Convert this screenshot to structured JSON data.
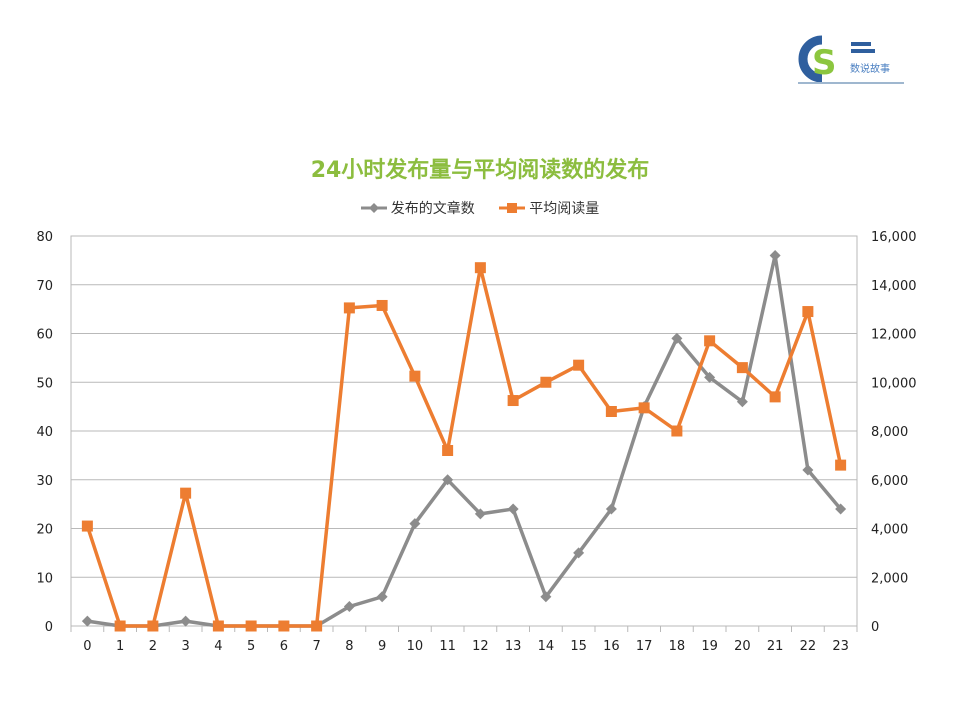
{
  "logo": {
    "caption": "数说故事"
  },
  "chart_data": {
    "type": "line",
    "title": "24小时发布量与平均阅读数的发布",
    "categories": [
      "0",
      "1",
      "2",
      "3",
      "4",
      "5",
      "6",
      "7",
      "8",
      "9",
      "10",
      "11",
      "12",
      "13",
      "14",
      "15",
      "16",
      "17",
      "18",
      "19",
      "20",
      "21",
      "22",
      "23"
    ],
    "series": [
      {
        "name": "发布的文章数",
        "axis": "left",
        "color": "#8c8c8c",
        "marker": "diamond",
        "values": [
          1,
          0,
          0,
          1,
          0,
          0,
          0,
          0,
          4,
          6,
          21,
          30,
          23,
          24,
          6,
          15,
          24,
          45,
          59,
          51,
          46,
          76,
          32,
          24
        ]
      },
      {
        "name": "平均阅读量",
        "axis": "right",
        "color": "#ed7d31",
        "marker": "square",
        "values": [
          4100,
          0,
          0,
          5450,
          0,
          0,
          0,
          0,
          13050,
          13150,
          10250,
          7200,
          14700,
          9250,
          10000,
          10700,
          8800,
          8950,
          8000,
          11700,
          10600,
          9400,
          12900,
          6600
        ]
      }
    ],
    "y_left": {
      "ylim": [
        0,
        80
      ],
      "ticks": [
        "0",
        "10",
        "20",
        "30",
        "40",
        "50",
        "60",
        "70",
        "80"
      ]
    },
    "y_right": {
      "ylim": [
        0,
        16000
      ],
      "ticks": [
        "0",
        "2,000",
        "4,000",
        "6,000",
        "8,000",
        "10,000",
        "12,000",
        "14,000",
        "16,000"
      ]
    },
    "grid": true,
    "legend_position": "top-center"
  }
}
